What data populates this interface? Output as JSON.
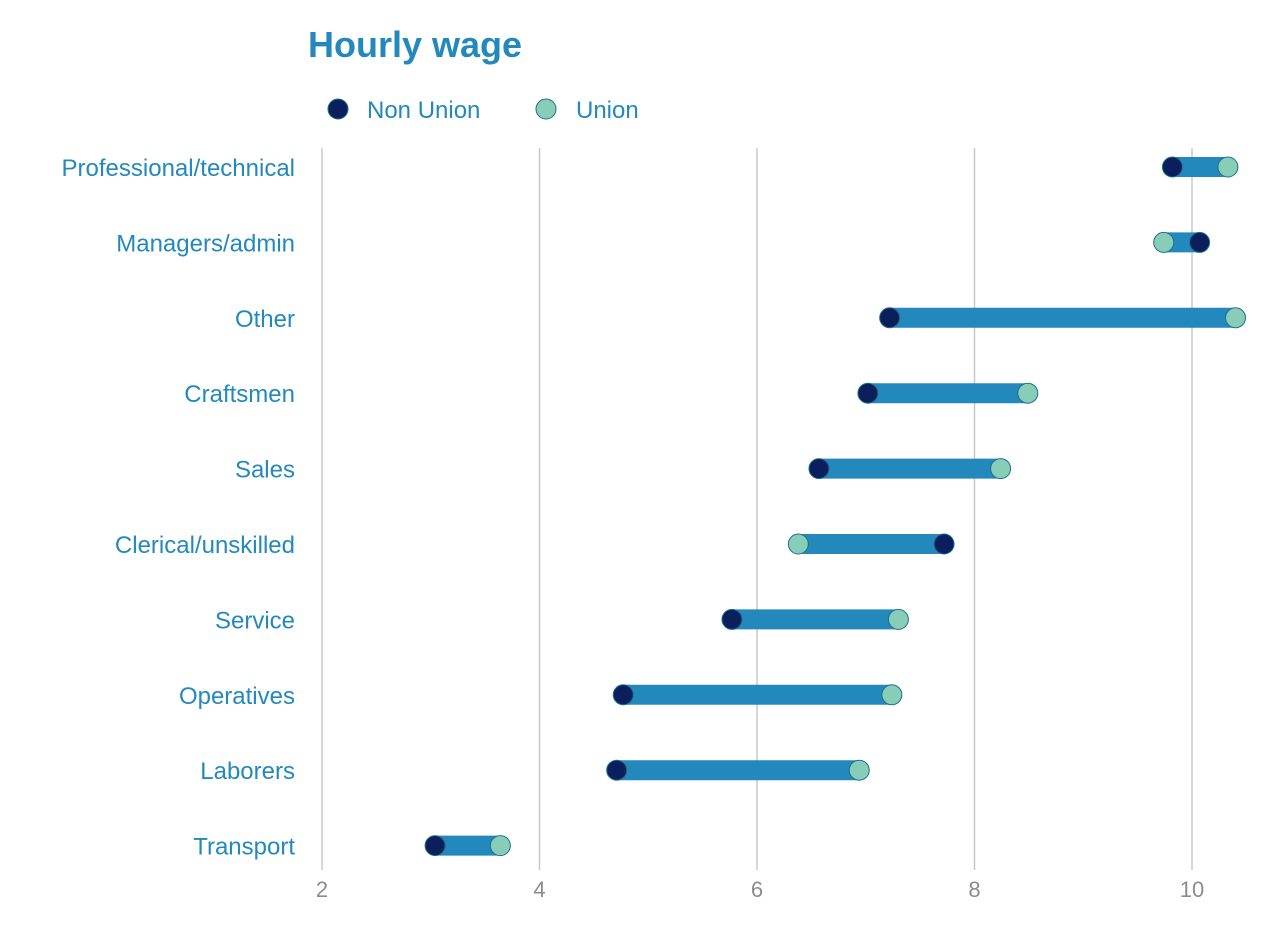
{
  "colors": {
    "title": "#2389BD",
    "label": "#2389BD",
    "tick": "#8C8C8C",
    "grid": "#C8C8C8",
    "bar": "#2389BD",
    "non_union": "#0B1F5C",
    "union": "#88CDB8"
  },
  "chart_data": {
    "type": "dumbbell",
    "title": "Hourly wage",
    "xlabel": "",
    "ylabel": "",
    "xlim": [
      2,
      10.5
    ],
    "xticks": [
      2,
      4,
      6,
      8,
      10
    ],
    "grid": "vertical",
    "legend_position": "top-left",
    "categories": [
      "Professional/technical",
      "Managers/admin",
      "Other",
      "Craftsmen",
      "Sales",
      "Clerical/unskilled",
      "Service",
      "Operatives",
      "Laborers",
      "Transport"
    ],
    "series": [
      {
        "name": "Non Union",
        "color": "#0B1F5C",
        "values": [
          9.82,
          10.07,
          7.22,
          7.02,
          6.57,
          7.72,
          5.77,
          4.77,
          4.71,
          3.04
        ]
      },
      {
        "name": "Union",
        "color": "#88CDB8",
        "values": [
          10.33,
          9.74,
          10.4,
          8.49,
          8.24,
          6.38,
          7.3,
          7.24,
          6.94,
          3.64
        ]
      }
    ]
  }
}
